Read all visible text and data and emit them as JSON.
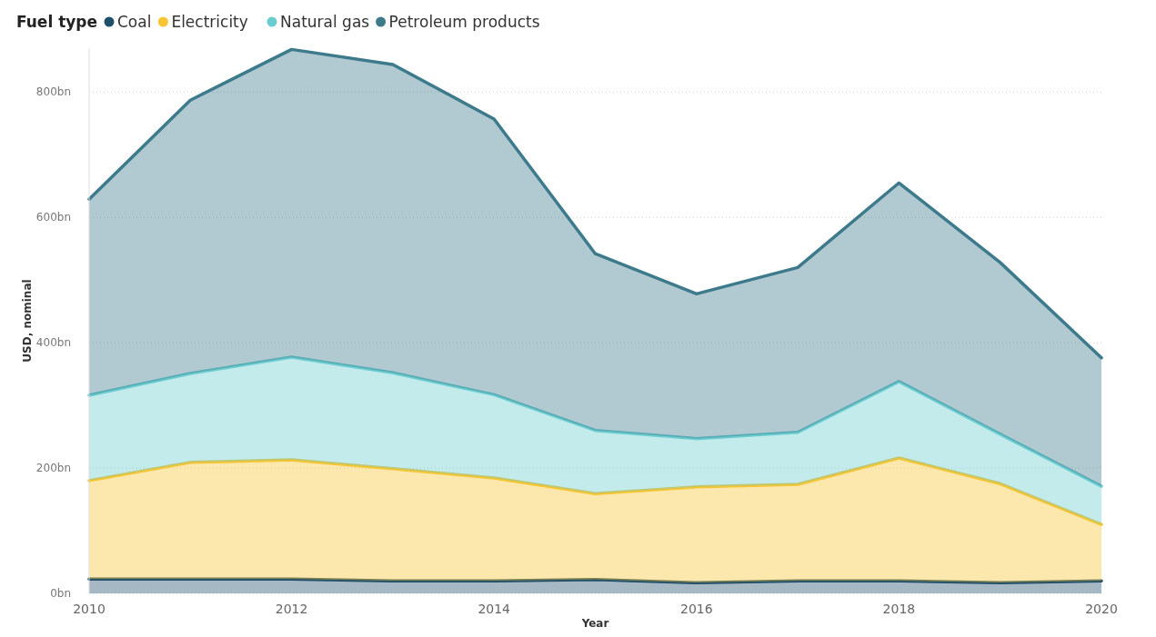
{
  "chart_data": {
    "type": "area",
    "stacked": true,
    "xlabel": "Year",
    "ylabel": "USD, nominal",
    "legend_title": "Fuel type",
    "legend": "top left",
    "grid": "y",
    "x": [
      2010,
      2011,
      2012,
      2013,
      2014,
      2015,
      2016,
      2017,
      2018,
      2019,
      2020
    ],
    "xlim": [
      2010,
      2020
    ],
    "xticks": [
      2010,
      2012,
      2014,
      2016,
      2018,
      2020
    ],
    "ylim": [
      0,
      870
    ],
    "yticks": [
      {
        "value": 0,
        "label": "0bn"
      },
      {
        "value": 200,
        "label": "200bn"
      },
      {
        "value": 400,
        "label": "400bn"
      },
      {
        "value": 600,
        "label": "600bn"
      },
      {
        "value": 800,
        "label": "800bn"
      }
    ],
    "series": [
      {
        "name": "Coal",
        "color": "#1f4e6b",
        "values": [
          23,
          23,
          23,
          20,
          20,
          22,
          17,
          20,
          20,
          17,
          20
        ]
      },
      {
        "name": "Electricity",
        "color": "#f7c531",
        "values": [
          157,
          186,
          190,
          179,
          164,
          137,
          153,
          154,
          196,
          158,
          90
        ]
      },
      {
        "name": "Natural gas",
        "color": "#6ccdd0",
        "values": [
          136,
          142,
          164,
          153,
          133,
          101,
          77,
          83,
          122,
          79,
          61
        ]
      },
      {
        "name": "Petroleum products",
        "color": "#3d7a8c",
        "values": [
          313,
          436,
          491,
          492,
          440,
          282,
          231,
          263,
          317,
          274,
          205
        ]
      }
    ]
  }
}
